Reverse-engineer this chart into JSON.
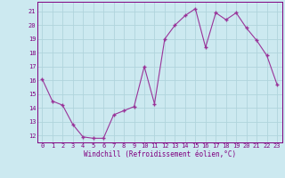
{
  "x": [
    0,
    1,
    2,
    3,
    4,
    5,
    6,
    7,
    8,
    9,
    10,
    11,
    12,
    13,
    14,
    15,
    16,
    17,
    18,
    19,
    20,
    21,
    22,
    23
  ],
  "y": [
    16.1,
    14.5,
    14.2,
    12.8,
    11.9,
    11.8,
    11.8,
    13.5,
    13.8,
    14.1,
    17.0,
    14.3,
    19.0,
    20.0,
    20.7,
    21.2,
    18.4,
    20.9,
    20.4,
    20.9,
    19.8,
    18.9,
    17.8,
    15.7
  ],
  "line_color": "#993399",
  "marker": "+",
  "marker_size": 3.5,
  "marker_linewidth": 1.0,
  "xlabel": "Windchill (Refroidissement éolien,°C)",
  "xlim": [
    -0.5,
    23.5
  ],
  "ylim": [
    11.5,
    21.7
  ],
  "yticks": [
    12,
    13,
    14,
    15,
    16,
    17,
    18,
    19,
    20,
    21
  ],
  "xticks": [
    0,
    1,
    2,
    3,
    4,
    5,
    6,
    7,
    8,
    9,
    10,
    11,
    12,
    13,
    14,
    15,
    16,
    17,
    18,
    19,
    20,
    21,
    22,
    23
  ],
  "background_color": "#cce9f0",
  "grid_color": "#b0d4dc",
  "tick_color": "#800080",
  "label_color": "#800080",
  "spine_color": "#800080",
  "font_size_tick": 5.0,
  "font_size_label": 5.5
}
